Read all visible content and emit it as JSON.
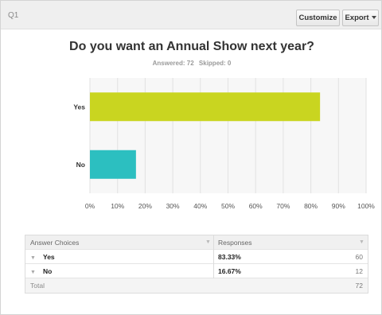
{
  "question": {
    "label": "Q1",
    "title": "Do you want an Annual Show next year?",
    "answered": "Answered: 72",
    "skipped": "Skipped: 0"
  },
  "toolbar": {
    "customize_label": "Customize",
    "export_label": "Export"
  },
  "chart_data": {
    "type": "bar",
    "orientation": "horizontal",
    "categories": [
      "Yes",
      "No"
    ],
    "values": [
      83.33,
      16.67
    ],
    "colors": [
      "#c9d520",
      "#2cbfc0"
    ],
    "xlim": [
      0,
      100
    ],
    "xticks": [
      "0%",
      "10%",
      "20%",
      "30%",
      "40%",
      "50%",
      "60%",
      "70%",
      "80%",
      "90%",
      "100%"
    ],
    "grid": true
  },
  "table": {
    "headers": [
      "Answer Choices",
      "Responses"
    ],
    "rows": [
      {
        "choice": "Yes",
        "percent": "83.33%",
        "count": "60"
      },
      {
        "choice": "No",
        "percent": "16.67%",
        "count": "12"
      }
    ],
    "total_label": "Total",
    "total_value": "72"
  },
  "icons": {
    "sort": "sort-arrow-icon",
    "expand": "expand-toggle-icon",
    "dropdown": "caret-down-icon"
  }
}
